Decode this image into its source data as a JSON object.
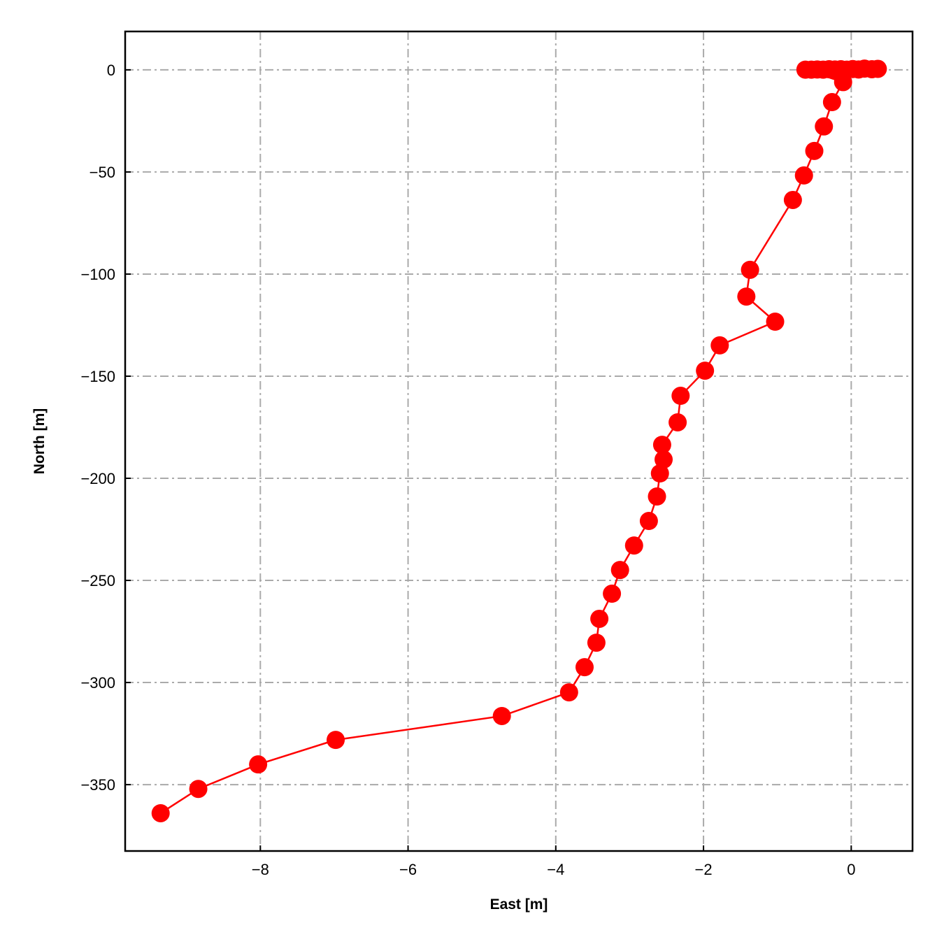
{
  "chart_data": {
    "type": "line",
    "title": "",
    "xlabel": "East [m]",
    "ylabel": "North [m]",
    "xlim": [
      -9.83,
      0.83
    ],
    "ylim": [
      -382.5,
      18.8
    ],
    "xticks": [
      -8,
      -6,
      -4,
      -2,
      0
    ],
    "yticks": [
      0,
      -50,
      -100,
      -150,
      -200,
      -250,
      -300,
      -350
    ],
    "xtick_labels": [
      "−8",
      "−6",
      "−4",
      "−2",
      "0"
    ],
    "ytick_labels": [
      "0",
      "−50",
      "−100",
      "−150",
      "−200",
      "−250",
      "−300",
      "−350"
    ],
    "grid": true,
    "grid_style": "dash-dot",
    "color": "#ff0000",
    "marker": "circle",
    "series": [
      {
        "x": [
          0.36,
          0.28,
          0.18,
          0.1,
          0.02,
          -0.06,
          -0.14,
          -0.22,
          -0.3,
          -0.38,
          -0.46,
          -0.54,
          -0.62,
          -0.11,
          -0.26,
          -0.37,
          -0.5,
          -0.64,
          -0.79,
          -1.37,
          -1.42,
          -1.03,
          -1.78,
          -1.98,
          -2.31,
          -2.35,
          -2.56,
          -2.54,
          -2.59,
          -2.63,
          -2.74,
          -2.94,
          -3.13,
          -3.24,
          -3.41,
          -3.45,
          -3.61,
          -3.82,
          -4.73,
          -6.98,
          -8.03,
          -8.84,
          -9.35
        ],
        "y": [
          0.5,
          0.3,
          0.6,
          0.2,
          0.4,
          0.1,
          0.3,
          0.2,
          0.3,
          0.1,
          0.2,
          0.1,
          0.1,
          -6.0,
          -15.8,
          -27.7,
          -39.7,
          -51.7,
          -63.7,
          -97.9,
          -111.0,
          -123.3,
          -134.9,
          -147.3,
          -159.6,
          -172.6,
          -183.6,
          -190.8,
          -197.6,
          -208.9,
          -220.9,
          -232.9,
          -244.9,
          -256.5,
          -268.8,
          -280.5,
          -292.5,
          -304.8,
          -316.4,
          -328.1,
          -340.1,
          -352.1,
          -364.0
        ]
      }
    ]
  }
}
